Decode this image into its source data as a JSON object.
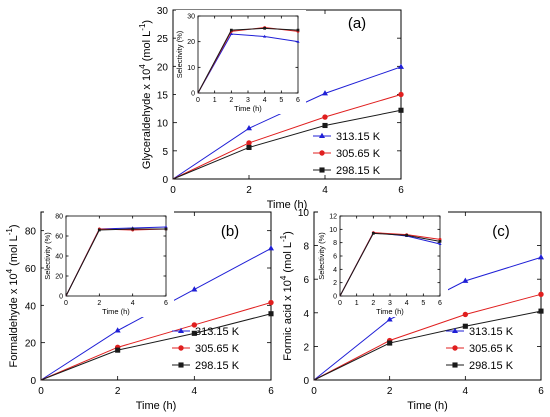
{
  "figure": {
    "colors": {
      "313.15 K": "#1f1fd6",
      "305.65 K": "#e01f1f",
      "298.15 K": "#1a1a1a"
    },
    "markers": {
      "313.15 K": "triangle",
      "305.65 K": "circle",
      "298.15 K": "square"
    }
  },
  "chart_data": [
    {
      "id": "a",
      "type": "line",
      "panel_label": "(a)",
      "xlabel": "Time (h)",
      "ylabel_main": "Glyceraldehyde x 10",
      "ylabel_exp": "4",
      "ylabel_unit": " (mol L",
      "ylabel_unit_exp": "-1",
      "ylabel_close": ")",
      "xlim": [
        0,
        6
      ],
      "ylim": [
        0,
        30
      ],
      "xticks": [
        0,
        2,
        4,
        6
      ],
      "yticks": [
        0,
        5,
        10,
        15,
        20,
        25,
        30
      ],
      "x": [
        0,
        2,
        4,
        6
      ],
      "series": [
        {
          "name": "313.15 K",
          "values": [
            0,
            9.0,
            15.2,
            19.9
          ]
        },
        {
          "name": "305.65 K",
          "values": [
            0,
            6.4,
            11.0,
            15.0
          ]
        },
        {
          "name": "298.15 K",
          "values": [
            0,
            5.6,
            9.5,
            12.2
          ]
        }
      ],
      "legend": "bottom-right",
      "inset": {
        "xlabel": "Time (h)",
        "ylabel": "Selectivity (%)",
        "xlim": [
          0,
          6
        ],
        "ylim": [
          0,
          30
        ],
        "xticks": [
          0,
          1,
          2,
          3,
          4,
          5,
          6
        ],
        "yticks": [
          0,
          10,
          20,
          30
        ],
        "x": [
          0,
          2,
          4,
          6
        ],
        "series": [
          {
            "name": "313.15 K",
            "values": [
              0,
              23,
              22,
              20
            ]
          },
          {
            "name": "305.65 K",
            "values": [
              0,
              24,
              25.5,
              24
            ]
          },
          {
            "name": "298.15 K",
            "values": [
              0,
              24.5,
              25.2,
              24.5
            ]
          }
        ]
      }
    },
    {
      "id": "b",
      "type": "line",
      "panel_label": "(b)",
      "xlabel": "Time (h)",
      "ylabel_main": "Formaldehyde x 10",
      "ylabel_exp": "4",
      "ylabel_unit": " (mol L",
      "ylabel_unit_exp": "-1",
      "ylabel_close": ")",
      "xlim": [
        0,
        6
      ],
      "ylim": [
        0,
        90
      ],
      "xticks": [
        0,
        2,
        4,
        6
      ],
      "yticks": [
        0,
        20,
        40,
        60,
        80
      ],
      "x": [
        0,
        2,
        4,
        6
      ],
      "series": [
        {
          "name": "313.15 K",
          "values": [
            0,
            26.5,
            48.5,
            70.5
          ]
        },
        {
          "name": "305.65 K",
          "values": [
            0,
            17.5,
            29.5,
            41.5
          ]
        },
        {
          "name": "298.15 K",
          "values": [
            0,
            16.0,
            25.0,
            35.5
          ]
        }
      ],
      "legend": "bottom-right",
      "inset": {
        "xlabel": "Time (h)",
        "ylabel": "Selectivity (%)",
        "xlim": [
          0,
          6
        ],
        "ylim": [
          0,
          80
        ],
        "xticks": [
          0,
          2,
          4,
          6
        ],
        "yticks": [
          0,
          20,
          40,
          60,
          80
        ],
        "x": [
          0,
          2,
          4,
          6
        ],
        "series": [
          {
            "name": "313.15 K",
            "values": [
              0,
              67,
              68,
              69
            ]
          },
          {
            "name": "305.65 K",
            "values": [
              0,
              67,
              66,
              67
            ]
          },
          {
            "name": "298.15 K",
            "values": [
              0,
              66,
              67,
              67
            ]
          }
        ]
      }
    },
    {
      "id": "c",
      "type": "line",
      "panel_label": "(c)",
      "xlabel": "Time (h)",
      "ylabel_main": "Formic acid x 10",
      "ylabel_exp": "4",
      "ylabel_unit": " (mol L",
      "ylabel_unit_exp": "-1",
      "ylabel_close": ")",
      "xlim": [
        0,
        6
      ],
      "ylim": [
        0,
        10
      ],
      "xticks": [
        0,
        2,
        4,
        6
      ],
      "yticks": [
        0,
        2,
        4,
        6,
        8,
        10
      ],
      "x": [
        0,
        2,
        4,
        6
      ],
      "series": [
        {
          "name": "313.15 K",
          "values": [
            0,
            3.6,
            5.9,
            7.3
          ]
        },
        {
          "name": "305.65 K",
          "values": [
            0,
            2.35,
            3.9,
            5.1
          ]
        },
        {
          "name": "298.15 K",
          "values": [
            0,
            2.2,
            3.2,
            4.1
          ]
        }
      ],
      "legend": "bottom-right",
      "inset": {
        "xlabel": "Time (h)",
        "ylabel": "Selectivity (%)",
        "xlim": [
          0,
          6
        ],
        "ylim": [
          0,
          12
        ],
        "xticks": [
          0,
          1,
          2,
          3,
          4,
          5,
          6
        ],
        "yticks": [
          0,
          2,
          4,
          6,
          8,
          10,
          12
        ],
        "x": [
          0,
          2,
          4,
          6
        ],
        "series": [
          {
            "name": "313.15 K",
            "values": [
              0,
              9.5,
              9.0,
              7.8
            ]
          },
          {
            "name": "305.65 K",
            "values": [
              0,
              9.5,
              9.2,
              8.5
            ]
          },
          {
            "name": "298.15 K",
            "values": [
              0,
              9.4,
              9.1,
              8.2
            ]
          }
        ]
      }
    }
  ]
}
